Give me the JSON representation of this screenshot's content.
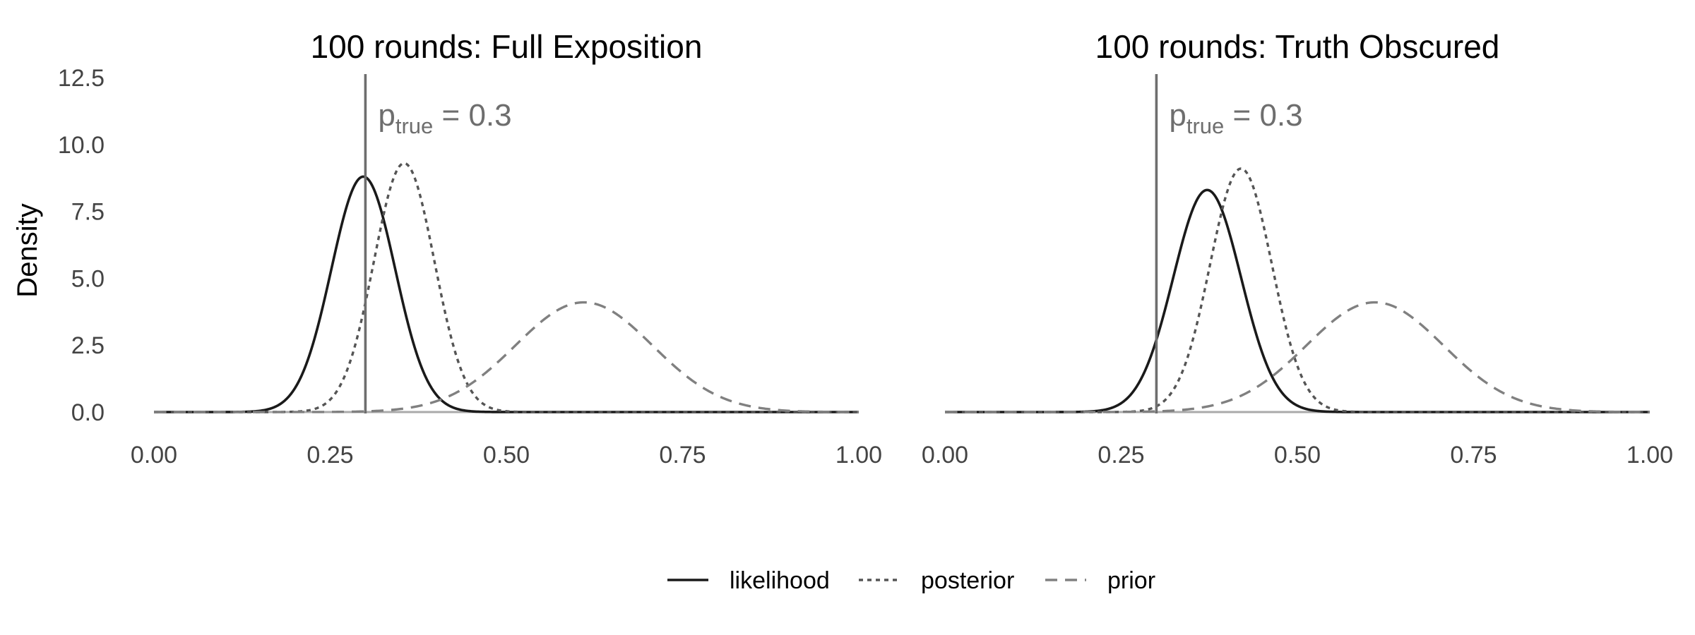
{
  "chart_data": {
    "type": "line",
    "ylabel": "Density",
    "xlim": [
      0,
      1
    ],
    "ylim": [
      0,
      12.5
    ],
    "x_ticks": [
      "0.00",
      "0.25",
      "0.50",
      "0.75",
      "1.00"
    ],
    "y_ticks": [
      "0.0",
      "2.5",
      "5.0",
      "7.5",
      "10.0",
      "12.5"
    ],
    "grid": false,
    "legend": {
      "placement": "bottom",
      "entries": [
        {
          "name": "likelihood",
          "style": "solid",
          "color": "#1a1a1a"
        },
        {
          "name": "posterior",
          "style": "dotted",
          "color": "#555555"
        },
        {
          "name": "prior",
          "style": "dashed",
          "color": "#808080"
        }
      ]
    },
    "vline_color": "#6e6e6e",
    "panels": [
      {
        "title": "100 rounds: Full Exposition",
        "annotation": {
          "symbol": "p",
          "subscript": "true",
          "text": " = 0.3"
        },
        "vline_x": 0.3,
        "series": [
          {
            "name": "likelihood",
            "peak_x": 0.297,
            "peak_density": 8.8
          },
          {
            "name": "posterior",
            "peak_x": 0.355,
            "peak_density": 9.3
          },
          {
            "name": "prior",
            "peak_x": 0.61,
            "peak_density": 4.1
          }
        ]
      },
      {
        "title": "100 rounds: Truth Obscured",
        "annotation": {
          "symbol": "p",
          "subscript": "true",
          "text": " = 0.3"
        },
        "vline_x": 0.3,
        "series": [
          {
            "name": "likelihood",
            "peak_x": 0.372,
            "peak_density": 8.3
          },
          {
            "name": "posterior",
            "peak_x": 0.42,
            "peak_density": 9.1
          },
          {
            "name": "prior",
            "peak_x": 0.61,
            "peak_density": 4.1
          }
        ]
      }
    ]
  }
}
